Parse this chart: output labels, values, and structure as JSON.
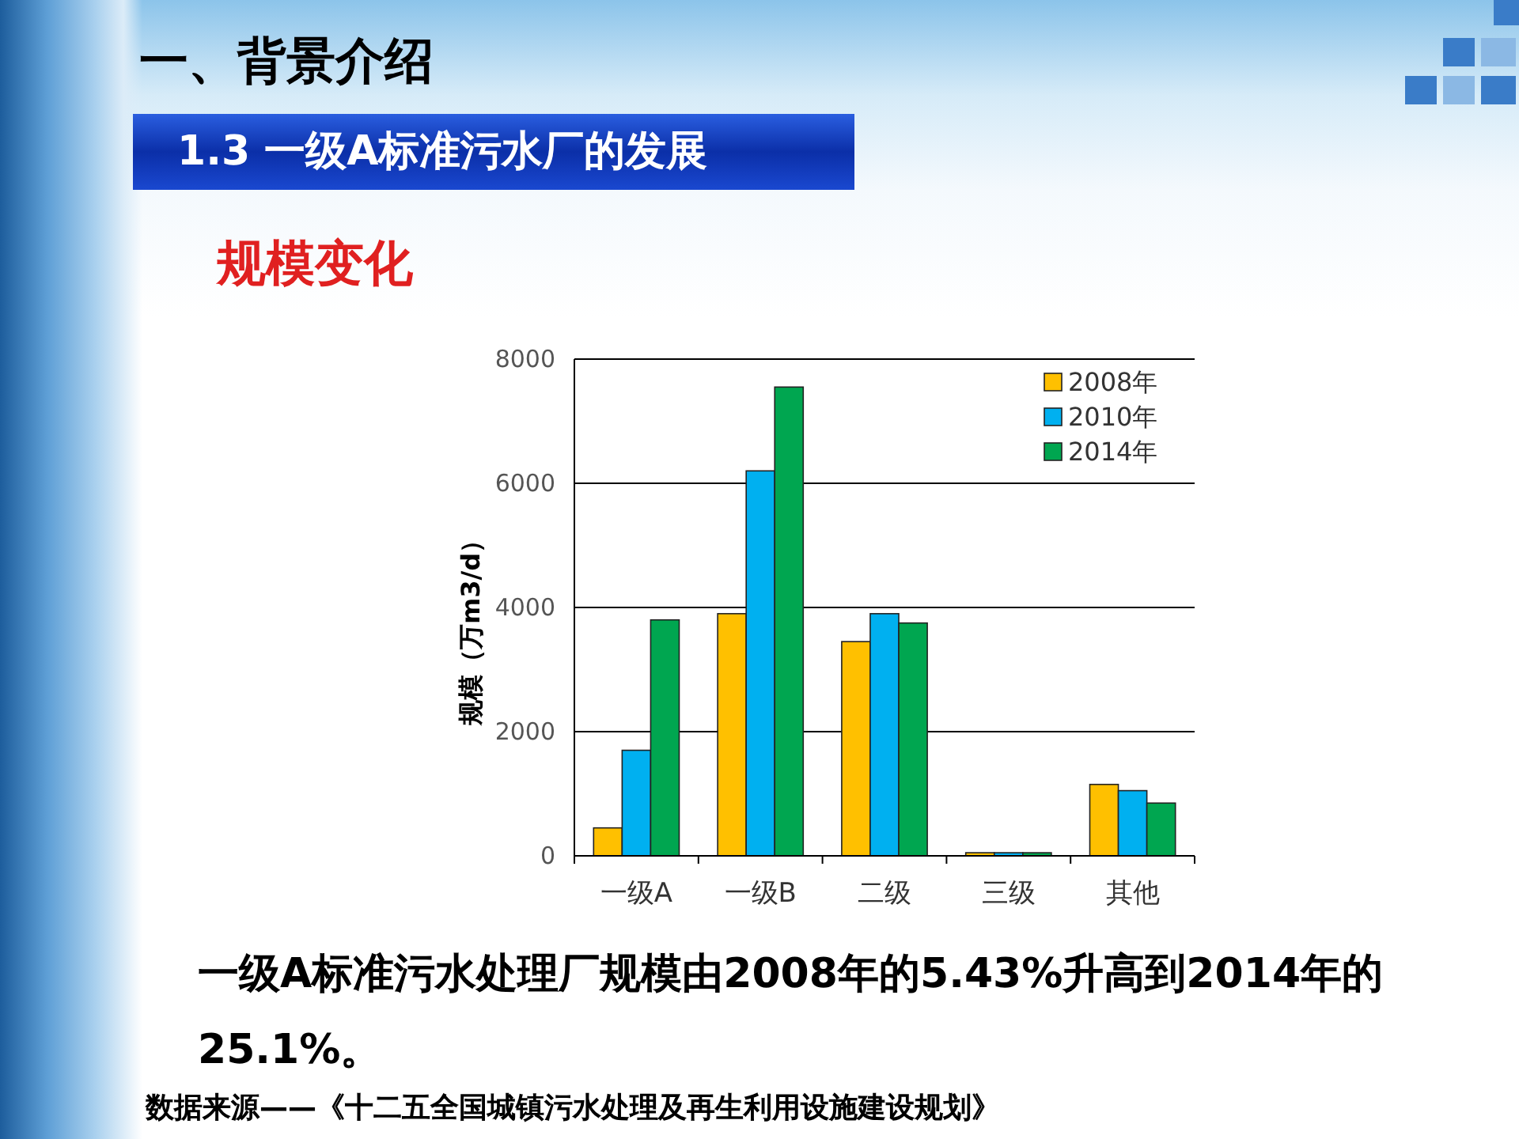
{
  "chart_data": {
    "type": "bar",
    "title": "一、背景介绍",
    "subtitle": "1.3 一级A标准污水厂的发展",
    "ylabel": "规模（万m3/d）",
    "categories": [
      "一级A",
      "一级B",
      "二级",
      "三级",
      "其他"
    ],
    "series": [
      {
        "name": "2008年",
        "color": "#ffc000",
        "values": [
          450,
          3900,
          3450,
          50,
          1150
        ]
      },
      {
        "name": "2010年",
        "color": "#00b0f0",
        "values": [
          1700,
          6200,
          3900,
          50,
          1050
        ]
      },
      {
        "name": "2014年",
        "color": "#00a650",
        "values": [
          3800,
          7550,
          3750,
          50,
          850
        ]
      }
    ],
    "ylim": [
      0,
      8000
    ],
    "yticks": [
      0,
      2000,
      4000,
      6000,
      8000
    ],
    "grid": "y",
    "legend": "top right",
    "annotations": [
      "规模变化",
      "一级A标准污水处理厂规模由2008年的5.43%升高到2014年的25.1%。",
      "数据来源——《十二五全国城镇污水处理及再生利用设施建设规划》"
    ]
  }
}
